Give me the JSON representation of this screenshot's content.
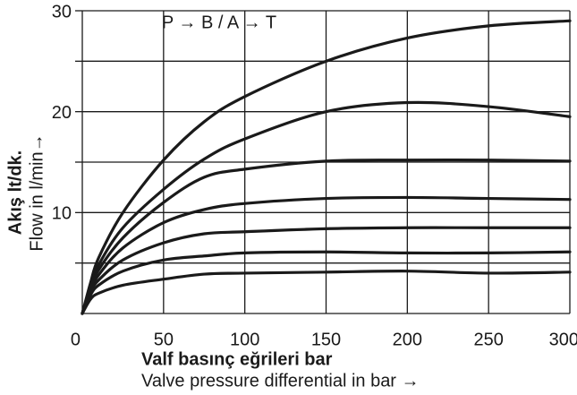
{
  "chart_data": {
    "type": "line",
    "title": "P → B / A → T",
    "x_label": "Valf basınç eğrileri bar",
    "x_label_2": "Valve pressure differential in bar →",
    "y_label": "Akış lt/dk.",
    "y_label_2": "Flow in l/min→",
    "x": [
      0,
      5,
      10,
      25,
      50,
      75,
      100,
      150,
      200,
      250,
      300
    ],
    "series": [
      {
        "color": "#1a1a1a",
        "values": [
          0,
          3,
          5.5,
          10,
          15.2,
          19,
          21.5,
          25,
          27.3,
          28.5,
          29
        ]
      },
      {
        "color": "#1a1a1a",
        "values": [
          0,
          2.7,
          4.8,
          8.5,
          12.3,
          15.3,
          17.3,
          20,
          20.9,
          20.5,
          19.5
        ]
      },
      {
        "color": "#1a1a1a",
        "values": [
          0,
          2.5,
          4.3,
          7.5,
          11,
          13.5,
          14.3,
          15.1,
          15.2,
          15.2,
          15.1
        ]
      },
      {
        "color": "#1a1a1a",
        "values": [
          0,
          2.3,
          3.8,
          6.5,
          9,
          10.3,
          10.9,
          11.4,
          11.5,
          11.4,
          11.3
        ]
      },
      {
        "color": "#1a1a1a",
        "values": [
          0,
          2.1,
          3.3,
          5.3,
          7,
          7.9,
          8.1,
          8.4,
          8.5,
          8.5,
          8.5
        ]
      },
      {
        "color": "#1a1a1a",
        "values": [
          0,
          1.8,
          2.8,
          4.2,
          5.3,
          5.7,
          6,
          6.1,
          6,
          6,
          6.1
        ]
      },
      {
        "color": "#1a1a1a",
        "values": [
          0,
          1.4,
          2,
          2.8,
          3.4,
          3.9,
          4,
          4.1,
          4.2,
          4,
          4.1
        ]
      }
    ],
    "xlim": [
      0,
      300
    ],
    "ylim": [
      0,
      30
    ],
    "xticks": [
      0,
      50,
      100,
      150,
      200,
      250,
      300
    ],
    "yticks": [
      {
        "value": 5,
        "label": null
      },
      10,
      {
        "value": 15,
        "label": null
      },
      20,
      {
        "value": 25,
        "label": null
      },
      30
    ],
    "grid": true
  }
}
